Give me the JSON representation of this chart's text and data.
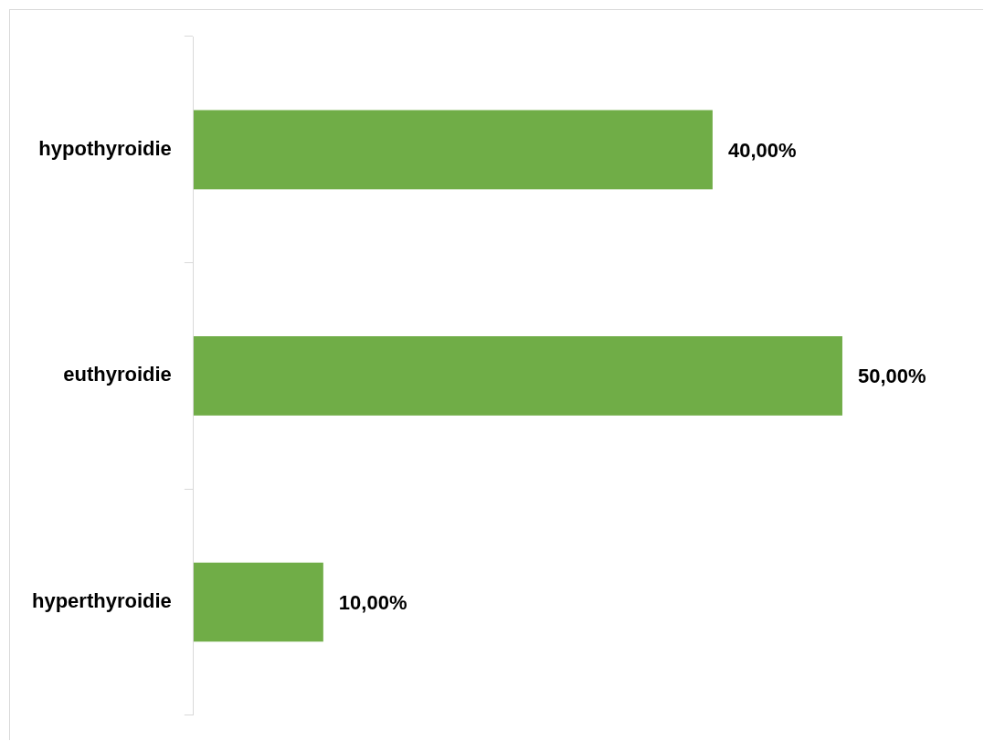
{
  "chart_data": {
    "type": "bar",
    "orientation": "horizontal",
    "categories": [
      "hypothyroidie",
      "euthyroidie",
      "hyperthyroidie"
    ],
    "values": [
      40,
      50,
      10
    ],
    "value_labels": [
      "40,00%",
      "50,00%",
      "10,00%"
    ],
    "color": "#70ad47"
  }
}
